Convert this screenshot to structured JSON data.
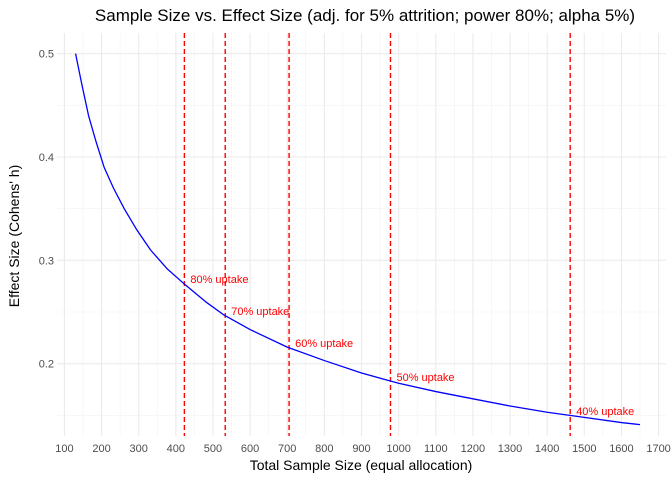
{
  "chart_data": {
    "type": "line",
    "title": "Sample Size vs. Effect Size (adj. for 5% attrition; power 80%; alpha 5%)",
    "xlabel": "Total Sample Size (equal allocation)",
    "ylabel": "Effect Size (Cohens' h)",
    "xlim": [
      80,
      1720
    ],
    "ylim": [
      0.13,
      0.52
    ],
    "x_ticks": [
      100,
      200,
      300,
      400,
      500,
      600,
      700,
      800,
      900,
      1000,
      1100,
      1200,
      1300,
      1400,
      1500,
      1600,
      1700
    ],
    "y_ticks": [
      0.2,
      0.3,
      0.4,
      0.5
    ],
    "grid": true,
    "series": [
      {
        "color": "#0000ff",
        "x": [
          130,
          147,
          165,
          185,
          207,
          232,
          261,
          294,
          332,
          376,
          420,
          480,
          530,
          600,
          700,
          800,
          900,
          1000,
          1100,
          1200,
          1300,
          1400,
          1500,
          1600,
          1650
        ],
        "y": [
          0.5,
          0.47,
          0.44,
          0.415,
          0.39,
          0.37,
          0.35,
          0.33,
          0.31,
          0.292,
          0.278,
          0.26,
          0.247,
          0.233,
          0.216,
          0.203,
          0.191,
          0.181,
          0.173,
          0.166,
          0.159,
          0.153,
          0.148,
          0.143,
          0.141
        ]
      }
    ],
    "annotations": [
      {
        "x": 423,
        "label": "80% uptake",
        "label_y": 0.282
      },
      {
        "x": 533,
        "label": "70% uptake",
        "label_y": 0.251
      },
      {
        "x": 705,
        "label": "60% uptake",
        "label_y": 0.22
      },
      {
        "x": 978,
        "label": "50% uptake",
        "label_y": 0.187
      },
      {
        "x": 1462,
        "label": "40% uptake",
        "label_y": 0.154
      }
    ],
    "annotation_color": "#ff0000"
  }
}
